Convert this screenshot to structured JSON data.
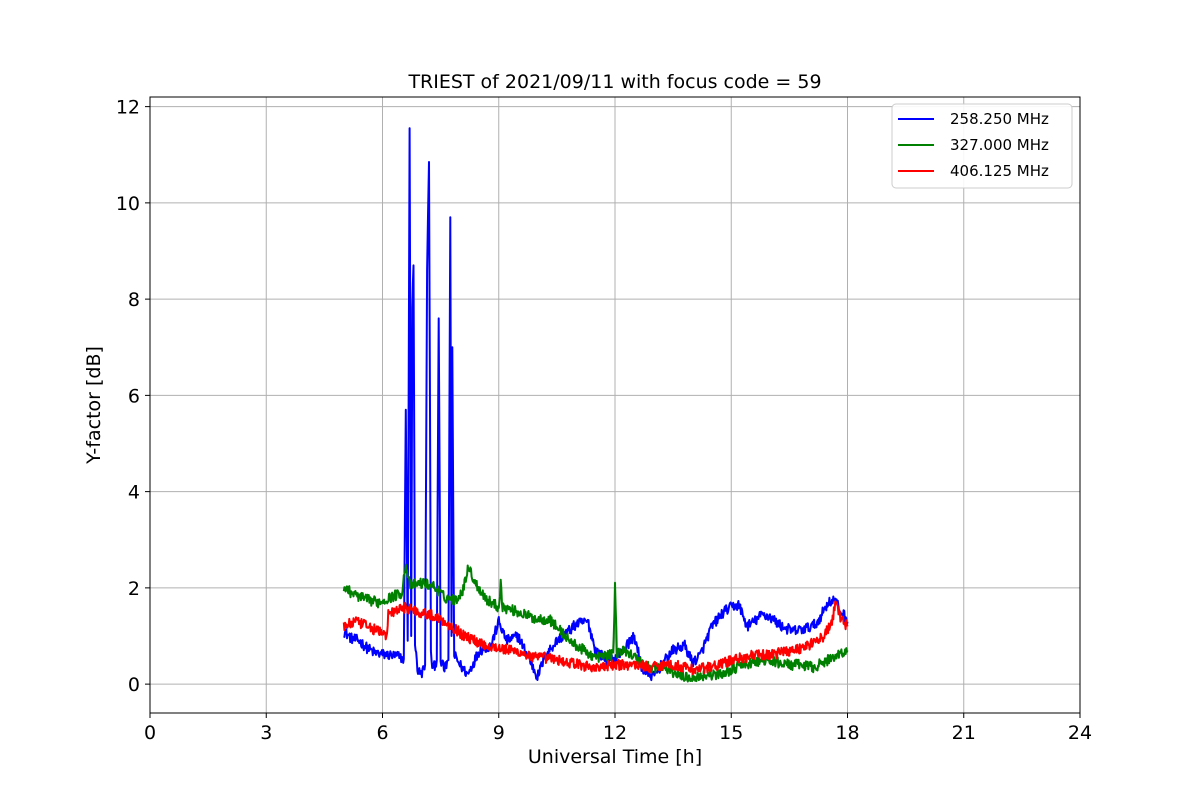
{
  "chart_data": {
    "type": "line",
    "title": "TRIEST of 2021/09/11 with focus code = 59",
    "xlabel": "Universal Time [h]",
    "ylabel": "Y-factor [dB]",
    "xlim": [
      0,
      24
    ],
    "ylim": [
      -0.6,
      12.2
    ],
    "xticks": [
      0,
      3,
      6,
      9,
      12,
      15,
      18,
      21,
      24
    ],
    "yticks": [
      0,
      2,
      4,
      6,
      8,
      10,
      12
    ],
    "grid": true,
    "legend_position": "top-right",
    "series": [
      {
        "name": "258.250 MHz",
        "color": "#0000ff",
        "points": [
          [
            5.0,
            1.1
          ],
          [
            5.2,
            0.95
          ],
          [
            5.4,
            0.9
          ],
          [
            5.6,
            0.75
          ],
          [
            5.8,
            0.65
          ],
          [
            6.0,
            0.62
          ],
          [
            6.2,
            0.6
          ],
          [
            6.4,
            0.58
          ],
          [
            6.55,
            0.52
          ],
          [
            6.6,
            5.7
          ],
          [
            6.65,
            0.9
          ],
          [
            6.7,
            11.55
          ],
          [
            6.74,
            1.0
          ],
          [
            6.77,
            7.8
          ],
          [
            6.8,
            8.7
          ],
          [
            6.84,
            0.9
          ],
          [
            6.9,
            0.3
          ],
          [
            7.0,
            0.2
          ],
          [
            7.1,
            0.4
          ],
          [
            7.15,
            8.6
          ],
          [
            7.2,
            10.85
          ],
          [
            7.25,
            0.6
          ],
          [
            7.3,
            0.3
          ],
          [
            7.4,
            0.5
          ],
          [
            7.45,
            7.6
          ],
          [
            7.5,
            0.5
          ],
          [
            7.6,
            0.3
          ],
          [
            7.7,
            0.5
          ],
          [
            7.75,
            9.7
          ],
          [
            7.78,
            1.0
          ],
          [
            7.8,
            7.0
          ],
          [
            7.85,
            0.6
          ],
          [
            8.0,
            0.4
          ],
          [
            8.2,
            0.2
          ],
          [
            8.5,
            0.7
          ],
          [
            8.8,
            0.8
          ],
          [
            9.0,
            1.3
          ],
          [
            9.2,
            0.9
          ],
          [
            9.5,
            1.0
          ],
          [
            9.8,
            0.5
          ],
          [
            10.0,
            0.15
          ],
          [
            10.2,
            0.6
          ],
          [
            10.5,
            0.9
          ],
          [
            10.8,
            1.1
          ],
          [
            11.0,
            1.25
          ],
          [
            11.3,
            1.3
          ],
          [
            11.5,
            0.7
          ],
          [
            11.8,
            0.5
          ],
          [
            12.0,
            0.5
          ],
          [
            12.3,
            0.8
          ],
          [
            12.5,
            1.0
          ],
          [
            12.7,
            0.3
          ],
          [
            13.0,
            0.15
          ],
          [
            13.2,
            0.4
          ],
          [
            13.5,
            0.7
          ],
          [
            13.8,
            0.8
          ],
          [
            14.0,
            0.45
          ],
          [
            14.2,
            0.6
          ],
          [
            14.5,
            1.2
          ],
          [
            14.8,
            1.5
          ],
          [
            15.0,
            1.6
          ],
          [
            15.2,
            1.65
          ],
          [
            15.4,
            1.2
          ],
          [
            15.6,
            1.3
          ],
          [
            15.8,
            1.45
          ],
          [
            16.0,
            1.4
          ],
          [
            16.3,
            1.2
          ],
          [
            16.6,
            1.1
          ],
          [
            16.9,
            1.15
          ],
          [
            17.2,
            1.25
          ],
          [
            17.5,
            1.7
          ],
          [
            17.7,
            1.75
          ],
          [
            17.8,
            1.5
          ],
          [
            17.9,
            1.45
          ],
          [
            18.0,
            1.3
          ]
        ]
      },
      {
        "name": "327.000 MHz",
        "color": "#008000",
        "points": [
          [
            5.0,
            2.0
          ],
          [
            5.3,
            1.85
          ],
          [
            5.6,
            1.75
          ],
          [
            5.9,
            1.7
          ],
          [
            6.2,
            1.8
          ],
          [
            6.5,
            1.9
          ],
          [
            6.6,
            2.5
          ],
          [
            6.7,
            2.05
          ],
          [
            7.0,
            2.1
          ],
          [
            7.3,
            2.05
          ],
          [
            7.6,
            1.8
          ],
          [
            7.9,
            1.75
          ],
          [
            8.1,
            2.0
          ],
          [
            8.2,
            2.45
          ],
          [
            8.4,
            2.1
          ],
          [
            8.7,
            1.75
          ],
          [
            9.0,
            1.6
          ],
          [
            9.05,
            2.1
          ],
          [
            9.1,
            1.6
          ],
          [
            9.5,
            1.5
          ],
          [
            9.8,
            1.4
          ],
          [
            10.0,
            1.35
          ],
          [
            10.3,
            1.35
          ],
          [
            10.6,
            1.1
          ],
          [
            10.9,
            0.85
          ],
          [
            11.2,
            0.7
          ],
          [
            11.5,
            0.55
          ],
          [
            11.8,
            0.6
          ],
          [
            11.95,
            0.6
          ],
          [
            12.0,
            2.05
          ],
          [
            12.05,
            0.65
          ],
          [
            12.3,
            0.7
          ],
          [
            12.6,
            0.5
          ],
          [
            12.9,
            0.35
          ],
          [
            13.2,
            0.35
          ],
          [
            13.5,
            0.25
          ],
          [
            13.8,
            0.15
          ],
          [
            14.1,
            0.15
          ],
          [
            14.4,
            0.2
          ],
          [
            14.7,
            0.2
          ],
          [
            15.0,
            0.3
          ],
          [
            15.3,
            0.4
          ],
          [
            15.6,
            0.45
          ],
          [
            15.9,
            0.5
          ],
          [
            16.2,
            0.45
          ],
          [
            16.5,
            0.4
          ],
          [
            16.8,
            0.4
          ],
          [
            17.1,
            0.35
          ],
          [
            17.4,
            0.45
          ],
          [
            17.7,
            0.6
          ],
          [
            18.0,
            0.7
          ]
        ]
      },
      {
        "name": "406.125 MHz",
        "color": "#ff0000",
        "points": [
          [
            5.0,
            1.2
          ],
          [
            5.3,
            1.3
          ],
          [
            5.6,
            1.2
          ],
          [
            5.9,
            1.1
          ],
          [
            6.1,
            1.0
          ],
          [
            6.15,
            1.45
          ],
          [
            6.3,
            1.5
          ],
          [
            6.6,
            1.6
          ],
          [
            6.9,
            1.5
          ],
          [
            7.2,
            1.45
          ],
          [
            7.5,
            1.35
          ],
          [
            7.8,
            1.2
          ],
          [
            8.1,
            1.0
          ],
          [
            8.4,
            0.9
          ],
          [
            8.7,
            0.8
          ],
          [
            9.0,
            0.75
          ],
          [
            9.3,
            0.7
          ],
          [
            9.6,
            0.65
          ],
          [
            9.9,
            0.55
          ],
          [
            10.2,
            0.55
          ],
          [
            10.5,
            0.5
          ],
          [
            10.8,
            0.45
          ],
          [
            11.1,
            0.4
          ],
          [
            11.4,
            0.35
          ],
          [
            11.7,
            0.35
          ],
          [
            12.0,
            0.4
          ],
          [
            12.3,
            0.4
          ],
          [
            12.6,
            0.4
          ],
          [
            12.9,
            0.35
          ],
          [
            13.2,
            0.4
          ],
          [
            13.5,
            0.4
          ],
          [
            13.8,
            0.35
          ],
          [
            14.1,
            0.3
          ],
          [
            14.4,
            0.35
          ],
          [
            14.7,
            0.4
          ],
          [
            15.0,
            0.5
          ],
          [
            15.3,
            0.55
          ],
          [
            15.6,
            0.6
          ],
          [
            15.9,
            0.6
          ],
          [
            16.2,
            0.65
          ],
          [
            16.5,
            0.7
          ],
          [
            16.8,
            0.75
          ],
          [
            17.1,
            0.85
          ],
          [
            17.4,
            1.0
          ],
          [
            17.6,
            1.3
          ],
          [
            17.7,
            1.7
          ],
          [
            17.8,
            1.4
          ],
          [
            18.0,
            1.2
          ]
        ]
      }
    ]
  }
}
